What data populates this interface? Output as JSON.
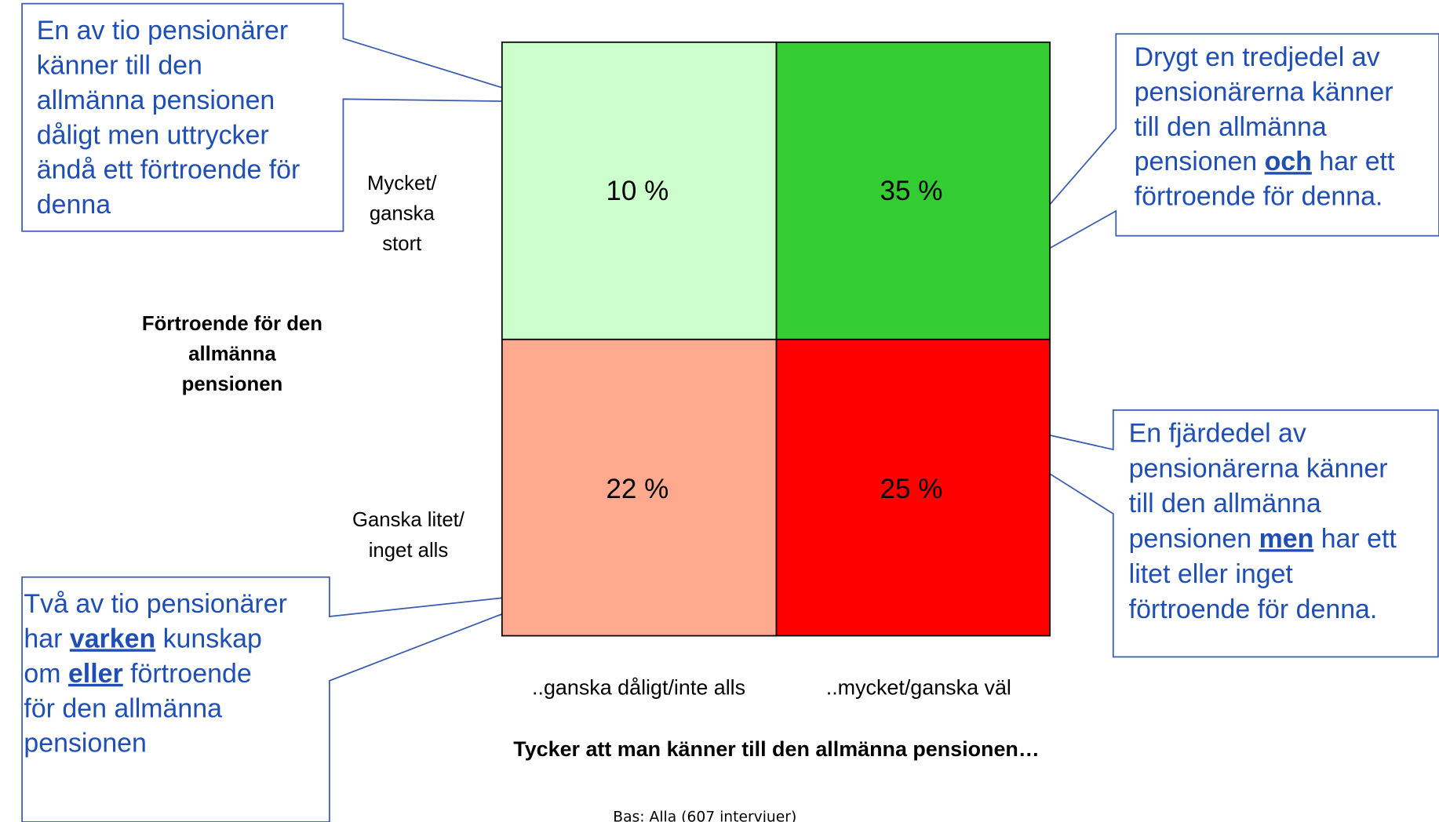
{
  "chart_data": {
    "type": "quadrant",
    "y_label": [
      "Förtroende för den",
      "allmänna",
      "pensionen"
    ],
    "x_label": "Tycker att man känner till den allmänna pensionen…",
    "rows": [
      [
        "Mycket/",
        "ganska",
        "stort"
      ],
      [
        "Ganska litet/",
        "inget alls"
      ]
    ],
    "columns": [
      "..ganska dåligt/inte alls",
      "..mycket/ganska väl"
    ],
    "cells": [
      {
        "values": [
          10,
          35
        ],
        "value_labels": [
          "10 %",
          "35 %"
        ],
        "colors": [
          "#ccffcc",
          "#33cc33"
        ]
      },
      {
        "values": [
          22,
          25
        ],
        "value_labels": [
          "22 %",
          "25 %"
        ],
        "colors": [
          "#ffa98f",
          "#ff0000"
        ]
      }
    ],
    "callouts": [
      {
        "lines": [
          [
            {
              "text": "En av tio pensionärer"
            }
          ],
          [
            {
              "text": "känner till den"
            }
          ],
          [
            {
              "text": "allmänna pensionen"
            }
          ],
          [
            {
              "text": "dåligt men uttrycker"
            }
          ],
          [
            {
              "text": "ändå ett förtroende för"
            }
          ],
          [
            {
              "text": "denna"
            }
          ]
        ]
      },
      {
        "lines": [
          [
            {
              "text": "Drygt en tredjedel av"
            }
          ],
          [
            {
              "text": "pensionärerna känner"
            }
          ],
          [
            {
              "text": "till den allmänna"
            }
          ],
          [
            {
              "text": "pensionen "
            },
            {
              "text": "och",
              "bold": true
            },
            {
              "text": " har ett"
            }
          ],
          [
            {
              "text": "förtroende för denna."
            }
          ]
        ]
      },
      {
        "lines": [
          [
            {
              "text": "Två av tio pensionärer"
            }
          ],
          [
            {
              "text": "har "
            },
            {
              "text": "varken",
              "bold": true
            },
            {
              "text": " kunskap"
            }
          ],
          [
            {
              "text": "om "
            },
            {
              "text": "eller",
              "bold": true
            },
            {
              "text": " förtroende"
            }
          ],
          [
            {
              "text": "för den allmänna"
            }
          ],
          [
            {
              "text": "pensionen"
            }
          ]
        ]
      },
      {
        "lines": [
          [
            {
              "text": "En fjärdedel av"
            }
          ],
          [
            {
              "text": "pensionärerna känner"
            }
          ],
          [
            {
              "text": "till den allmänna"
            }
          ],
          [
            {
              "text": "pensionen "
            },
            {
              "text": "men",
              "bold": true
            },
            {
              "text": " har ett"
            }
          ],
          [
            {
              "text": "litet eller inget"
            }
          ],
          [
            {
              "text": "förtroende för denna."
            }
          ]
        ]
      }
    ],
    "note": "Bas: Alla (607 intervjuer)"
  }
}
